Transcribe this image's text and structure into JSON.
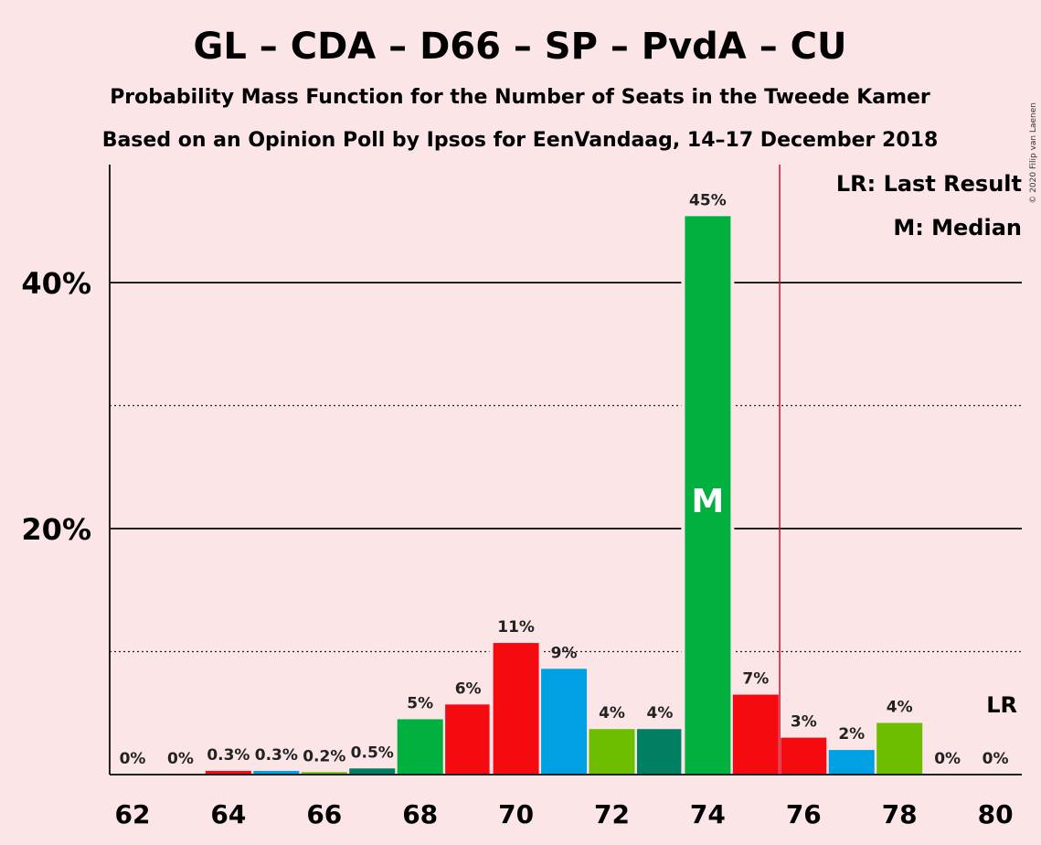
{
  "title": "GL – CDA – D66 – SP – PvdA – CU",
  "subtitle1": "Probability Mass Function for the Number of Seats in the Tweede Kamer",
  "subtitle2": "Based on an Opinion Poll by Ipsos for EenVandaag, 14–17 December 2018",
  "copyright": "© 2020 Filip van Laenen",
  "legend": {
    "lr": "LR: Last Result",
    "m": "M: Median"
  },
  "lr_marker_label": "LR",
  "median_label": "M",
  "colors": {
    "background": "#fbe5e7",
    "lr_line": "#c8102e",
    "GL": "#00b140",
    "PvdA": "#f50a10",
    "D66": "#00a0e2",
    "CU": "#6dbe00",
    "CDA": "#007f62"
  },
  "chart_data": {
    "type": "bar",
    "title": "GL – CDA – D66 – SP – PvdA – CU",
    "xlabel": "",
    "ylabel": "",
    "ylim": [
      0,
      49
    ],
    "y_ticks_major": [
      20,
      40
    ],
    "y_tick_labels": [
      "20%",
      "40%"
    ],
    "y_gridlines_dotted": [
      10,
      30
    ],
    "x_tick_labels": [
      "62",
      "64",
      "66",
      "68",
      "70",
      "72",
      "74",
      "76",
      "78",
      "80"
    ],
    "x_tick_values": [
      62,
      64,
      66,
      68,
      70,
      72,
      74,
      76,
      78,
      80
    ],
    "median": 74,
    "last_result_line_x": 75.5,
    "bars": [
      {
        "x": 62,
        "value": 0,
        "label": "0%",
        "color": "#6dbe00"
      },
      {
        "x": 63,
        "value": 0,
        "label": "0%",
        "color": "#007f62"
      },
      {
        "x": 64,
        "value": 0.3,
        "label": "0.3%",
        "color": "#f50a10"
      },
      {
        "x": 65,
        "value": 0.3,
        "label": "0.3%",
        "color": "#00a0e2"
      },
      {
        "x": 66,
        "value": 0.2,
        "label": "0.2%",
        "color": "#6dbe00"
      },
      {
        "x": 67,
        "value": 0.5,
        "label": "0.5%",
        "color": "#007f62"
      },
      {
        "x": 68,
        "value": 4.5,
        "label": "5%",
        "color": "#00b140"
      },
      {
        "x": 69,
        "value": 5.7,
        "label": "6%",
        "color": "#f50a10"
      },
      {
        "x": 70,
        "value": 10.7,
        "label": "11%",
        "color": "#f50a10"
      },
      {
        "x": 71,
        "value": 8.6,
        "label": "9%",
        "color": "#00a0e2"
      },
      {
        "x": 72,
        "value": 3.7,
        "label": "4%",
        "color": "#6dbe00"
      },
      {
        "x": 73,
        "value": 3.7,
        "label": "4%",
        "color": "#007f62"
      },
      {
        "x": 74,
        "value": 45.4,
        "label": "45%",
        "color": "#00b140"
      },
      {
        "x": 75,
        "value": 6.5,
        "label": "7%",
        "color": "#f50a10"
      },
      {
        "x": 76,
        "value": 3.0,
        "label": "3%",
        "color": "#f50a10"
      },
      {
        "x": 77,
        "value": 2.0,
        "label": "2%",
        "color": "#00a0e2"
      },
      {
        "x": 78,
        "value": 4.2,
        "label": "4%",
        "color": "#6dbe00"
      },
      {
        "x": 79,
        "value": 0,
        "label": "0%",
        "color": "#007f62"
      },
      {
        "x": 80,
        "value": 0,
        "label": "0%",
        "color": "#00b140"
      }
    ]
  }
}
